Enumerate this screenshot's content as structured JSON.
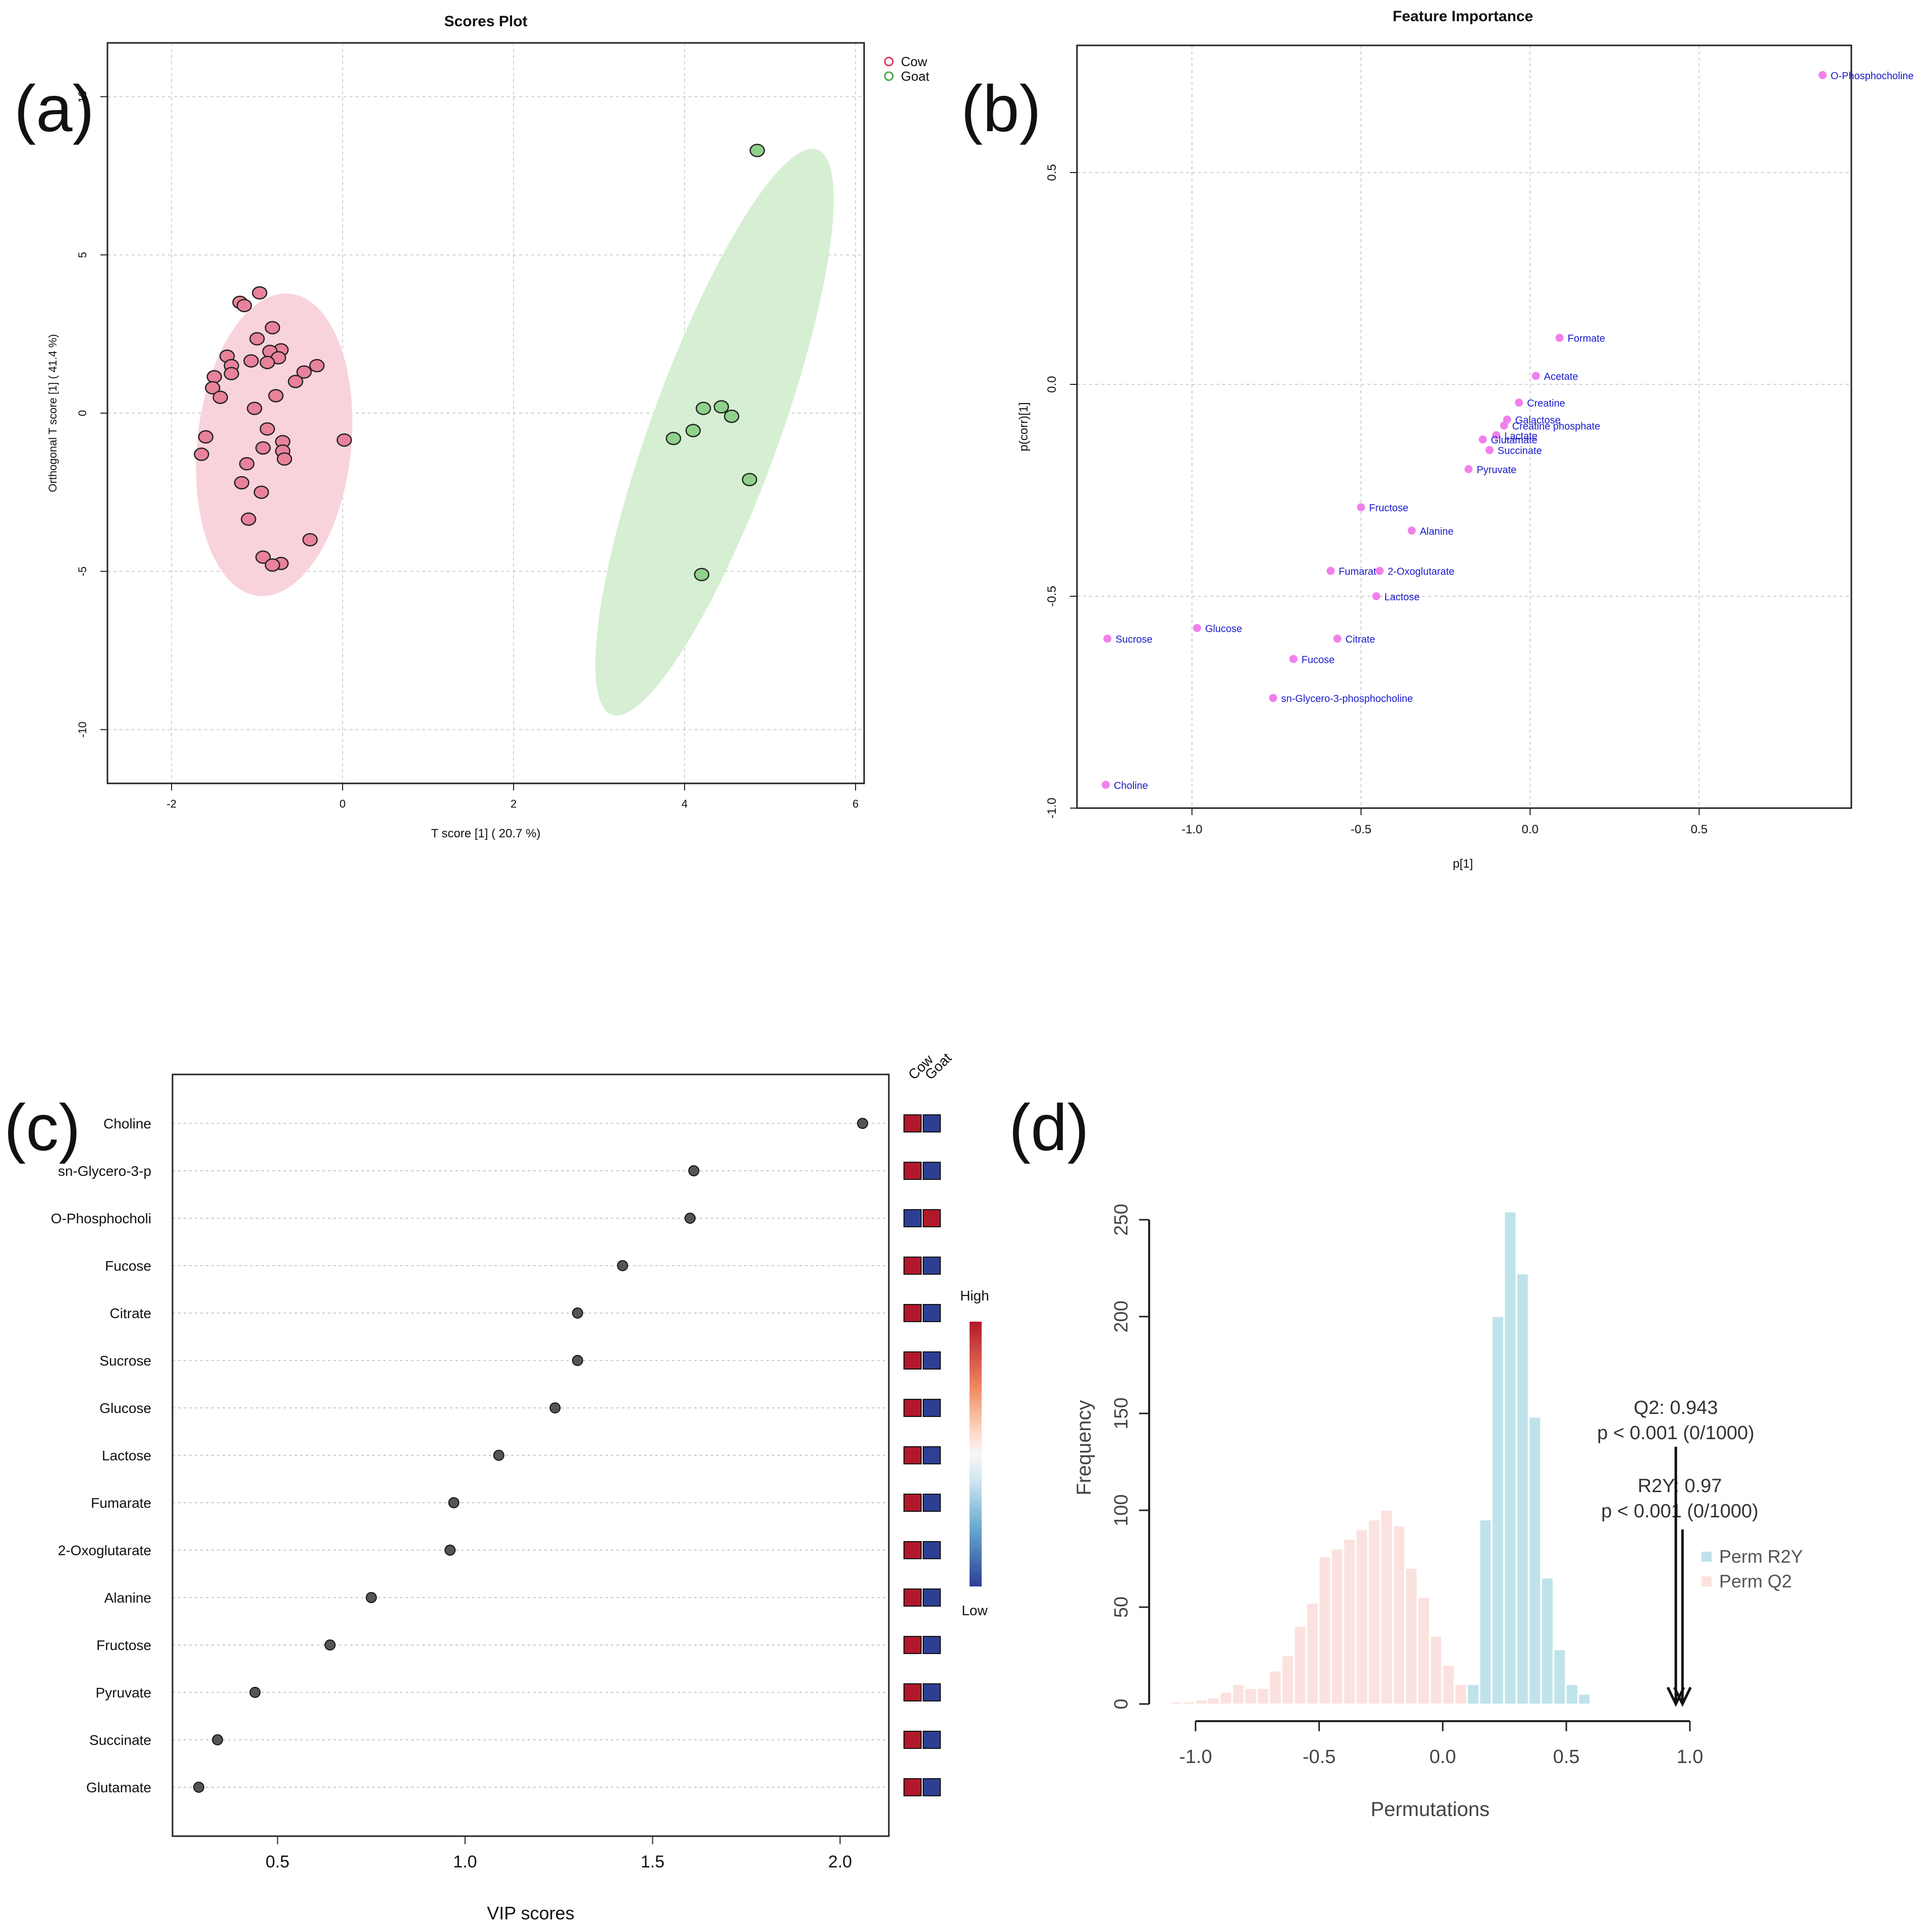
{
  "panel_labels": {
    "a": "(a)",
    "b": "(b)",
    "c": "(c)",
    "d": "(d)"
  },
  "colors": {
    "cow_fill": "#e8829a",
    "cow_edge": "#d63d63",
    "cow_ellipse": "#f9d3db",
    "goat_fill": "#8fd18a",
    "goat_edge": "#4aa945",
    "goat_ellipse": "#d6efd3",
    "feature_point": "#f080ea",
    "feature_text": "#1a1acc",
    "vip_point": "#555555",
    "heat_high": "#b2182b",
    "heat_low": "#2c3f94",
    "perm_r2y": "#bfe3ea",
    "perm_q2": "#fbe2df"
  },
  "chart_data": [
    {
      "id": "scores-plot",
      "type": "scatter",
      "title": "Scores Plot",
      "xlabel": "T score [1] ( 20.7 %)",
      "ylabel": "Orthogonal T score [1] ( 41.4 %)",
      "xlim": [
        -2.75,
        6.1
      ],
      "ylim": [
        -11.7,
        11.7
      ],
      "xticks": [
        -2,
        0,
        2,
        4,
        6
      ],
      "yticks": [
        -10,
        -5,
        0,
        5,
        10
      ],
      "grid": true,
      "legend": [
        "Cow",
        "Goat"
      ],
      "legend_position": "top-right",
      "ellipses": [
        {
          "group": "Cow",
          "cx": -0.8,
          "cy": -1.0,
          "rx": 0.9,
          "ry": 4.8,
          "angle_deg": -6
        },
        {
          "group": "Goat",
          "cx": 4.35,
          "cy": -0.6,
          "rx": 0.75,
          "ry": 9.5,
          "angle_deg": -20
        }
      ],
      "series": [
        {
          "name": "Cow",
          "points": [
            [
              -1.2,
              3.5
            ],
            [
              -1.15,
              3.4
            ],
            [
              -0.97,
              3.8
            ],
            [
              -0.82,
              2.7
            ],
            [
              -1.0,
              2.35
            ],
            [
              -0.72,
              2.0
            ],
            [
              -0.85,
              1.95
            ],
            [
              -0.75,
              1.75
            ],
            [
              -1.35,
              1.8
            ],
            [
              -1.3,
              1.5
            ],
            [
              -1.07,
              1.65
            ],
            [
              -0.88,
              1.6
            ],
            [
              -0.3,
              1.5
            ],
            [
              -0.45,
              1.3
            ],
            [
              -1.3,
              1.25
            ],
            [
              -1.5,
              1.15
            ],
            [
              -0.55,
              1.0
            ],
            [
              -1.52,
              0.8
            ],
            [
              -1.43,
              0.5
            ],
            [
              -0.78,
              0.55
            ],
            [
              -1.03,
              0.15
            ],
            [
              -0.88,
              -0.5
            ],
            [
              -1.6,
              -0.75
            ],
            [
              -0.7,
              -0.9
            ],
            [
              -0.93,
              -1.1
            ],
            [
              -0.7,
              -1.2
            ],
            [
              -1.65,
              -1.3
            ],
            [
              -0.68,
              -1.45
            ],
            [
              -1.12,
              -1.6
            ],
            [
              -1.18,
              -2.2
            ],
            [
              -0.95,
              -2.5
            ],
            [
              -1.1,
              -3.35
            ],
            [
              -0.38,
              -4.0
            ],
            [
              -0.93,
              -4.55
            ],
            [
              -0.72,
              -4.75
            ],
            [
              -0.82,
              -4.8
            ],
            [
              0.02,
              -0.85
            ]
          ]
        },
        {
          "name": "Goat",
          "points": [
            [
              4.85,
              8.3
            ],
            [
              4.22,
              0.15
            ],
            [
              4.43,
              0.2
            ],
            [
              4.55,
              -0.1
            ],
            [
              4.1,
              -0.55
            ],
            [
              3.87,
              -0.8
            ],
            [
              4.76,
              -2.1
            ],
            [
              4.2,
              -5.1
            ]
          ]
        }
      ]
    },
    {
      "id": "feature-importance",
      "type": "scatter",
      "title": "Feature Importance",
      "xlabel": "p[1]",
      "ylabel": "p(corr)[1]",
      "xlim": [
        -1.34,
        0.95
      ],
      "ylim": [
        -1.0,
        0.8
      ],
      "xticks": [
        -1.0,
        -0.5,
        0.0,
        0.5
      ],
      "xtick_labels": [
        "-1.0",
        "-0.5",
        "0.0",
        "0.5"
      ],
      "yticks": [
        -1.0,
        -0.5,
        0.0,
        0.5
      ],
      "ytick_labels": [
        "-1.0",
        "-0.5",
        "0.0",
        "0.5"
      ],
      "grid": true,
      "points": [
        {
          "label": "O-Phosphocholine",
          "x": 0.865,
          "y": 0.73
        },
        {
          "label": "Formate",
          "x": 0.087,
          "y": 0.11
        },
        {
          "label": "Acetate",
          "x": 0.017,
          "y": 0.02
        },
        {
          "label": "Creatine",
          "x": -0.033,
          "y": -0.043
        },
        {
          "label": "Galactose",
          "x": -0.068,
          "y": -0.083
        },
        {
          "label": "Creatine phosphate",
          "x": -0.077,
          "y": -0.097
        },
        {
          "label": "Lactate",
          "x": -0.1,
          "y": -0.12
        },
        {
          "label": "Glutamate",
          "x": -0.14,
          "y": -0.13
        },
        {
          "label": "Succinate",
          "x": -0.12,
          "y": -0.155
        },
        {
          "label": "Pyruvate",
          "x": -0.182,
          "y": -0.2
        },
        {
          "label": "Fructose",
          "x": -0.5,
          "y": -0.29
        },
        {
          "label": "Alanine",
          "x": -0.35,
          "y": -0.345
        },
        {
          "label": "Fumarate",
          "x": -0.59,
          "y": -0.44
        },
        {
          "label": "2-Oxoglutarate",
          "x": -0.445,
          "y": -0.44
        },
        {
          "label": "Lactose",
          "x": -0.455,
          "y": -0.5
        },
        {
          "label": "Glucose",
          "x": -0.985,
          "y": -0.575
        },
        {
          "label": "Sucrose",
          "x": -1.25,
          "y": -0.6
        },
        {
          "label": "Citrate",
          "x": -0.57,
          "y": -0.6
        },
        {
          "label": "Fucose",
          "x": -0.7,
          "y": -0.648
        },
        {
          "label": "sn-Glycero-3-phosphocholine",
          "x": -0.76,
          "y": -0.74
        },
        {
          "label": "Choline",
          "x": -1.255,
          "y": -0.945
        }
      ]
    },
    {
      "id": "vip-scores",
      "type": "dot",
      "xlabel": "VIP scores",
      "xlim": [
        0.22,
        2.13
      ],
      "xticks": [
        0.5,
        1.0,
        1.5,
        2.0
      ],
      "xtick_labels": [
        "0.5",
        "1.0",
        "1.5",
        "2.0"
      ],
      "grid": true,
      "heat_columns": [
        "Cow",
        "Goat"
      ],
      "colorbar_labels": {
        "high": "High",
        "low": "Low"
      },
      "items": [
        {
          "name": "Choline",
          "vip": 2.06,
          "cow": "high",
          "goat": "low"
        },
        {
          "name": "sn-Glycero-3-p",
          "vip": 1.61,
          "cow": "high",
          "goat": "low"
        },
        {
          "name": "O-Phosphocholi",
          "vip": 1.6,
          "cow": "low",
          "goat": "high"
        },
        {
          "name": "Fucose",
          "vip": 1.42,
          "cow": "high",
          "goat": "low"
        },
        {
          "name": "Citrate",
          "vip": 1.3,
          "cow": "high",
          "goat": "low"
        },
        {
          "name": "Sucrose",
          "vip": 1.3,
          "cow": "high",
          "goat": "low"
        },
        {
          "name": "Glucose",
          "vip": 1.24,
          "cow": "high",
          "goat": "low"
        },
        {
          "name": "Lactose",
          "vip": 1.09,
          "cow": "high",
          "goat": "low"
        },
        {
          "name": "Fumarate",
          "vip": 0.97,
          "cow": "high",
          "goat": "low"
        },
        {
          "name": "2-Oxoglutarate",
          "vip": 0.96,
          "cow": "high",
          "goat": "low"
        },
        {
          "name": "Alanine",
          "vip": 0.75,
          "cow": "high",
          "goat": "low"
        },
        {
          "name": "Fructose",
          "vip": 0.64,
          "cow": "high",
          "goat": "low"
        },
        {
          "name": "Pyruvate",
          "vip": 0.44,
          "cow": "high",
          "goat": "low"
        },
        {
          "name": "Succinate",
          "vip": 0.34,
          "cow": "high",
          "goat": "low"
        },
        {
          "name": "Glutamate",
          "vip": 0.29,
          "cow": "high",
          "goat": "low"
        }
      ]
    },
    {
      "id": "permutation-test",
      "type": "bar",
      "xlabel": "Permutations",
      "ylabel": "Frequency",
      "xlim": [
        -1.1,
        1.05
      ],
      "ylim": [
        0,
        260
      ],
      "xticks": [
        -1.0,
        -0.5,
        0.0,
        0.5,
        1.0
      ],
      "xtick_labels": [
        "-1.0",
        "-0.5",
        "0.0",
        "0.5",
        "1.0"
      ],
      "yticks": [
        0,
        50,
        100,
        150,
        200,
        250
      ],
      "ytick_labels": [
        "0",
        "50",
        "100",
        "150",
        "200",
        "250"
      ],
      "legend": [
        "Perm R2Y",
        "Perm Q2"
      ],
      "legend_position": "right",
      "bin_width": 0.05,
      "series": [
        {
          "name": "Perm Q2",
          "bin_starts": [
            -1.1,
            -1.05,
            -1.0,
            -0.95,
            -0.9,
            -0.85,
            -0.8,
            -0.75,
            -0.7,
            -0.65,
            -0.6,
            -0.55,
            -0.5,
            -0.45,
            -0.4,
            -0.35,
            -0.3,
            -0.25,
            -0.2,
            -0.15,
            -0.1,
            -0.05,
            0.0,
            0.05,
            0.1,
            0.15
          ],
          "counts": [
            1,
            1,
            2,
            3,
            6,
            10,
            8,
            8,
            17,
            25,
            40,
            52,
            76,
            80,
            85,
            90,
            95,
            100,
            92,
            70,
            55,
            35,
            20,
            10,
            5,
            2
          ]
        },
        {
          "name": "Perm R2Y",
          "bin_starts": [
            0.1,
            0.15,
            0.2,
            0.25,
            0.3,
            0.35,
            0.4,
            0.45,
            0.5,
            0.55
          ],
          "counts": [
            10,
            95,
            200,
            254,
            222,
            148,
            65,
            28,
            10,
            5
          ]
        }
      ],
      "annotations": [
        {
          "label": "Q2: 0.943",
          "pvalue": "p < 0.001 (0/1000)",
          "x": 0.943
        },
        {
          "label": "R2Y: 0.97",
          "pvalue": "p < 0.001 (0/1000)",
          "x": 0.97
        }
      ]
    }
  ]
}
